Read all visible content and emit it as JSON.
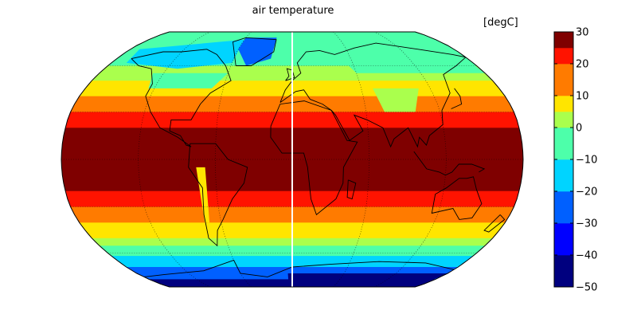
{
  "chart_data": {
    "type": "heatmap",
    "title": "air temperature",
    "units": "[degC]",
    "projection": "Robinson",
    "colorbar": {
      "orientation": "vertical",
      "position": "right",
      "min": -50,
      "max": 30,
      "ticks": [
        30,
        20,
        10,
        0,
        -10,
        -20,
        -30,
        -40,
        -50
      ],
      "tick_labels": [
        "30",
        "20",
        "10",
        "0",
        "−10",
        "−20",
        "−30",
        "−40",
        "−50"
      ],
      "bins": [
        {
          "from": -50,
          "to": -40,
          "color": "#00007f"
        },
        {
          "from": -40,
          "to": -30,
          "color": "#0000ff"
        },
        {
          "from": -30,
          "to": -20,
          "color": "#0060ff"
        },
        {
          "from": -20,
          "to": -10,
          "color": "#00d4ff"
        },
        {
          "from": -10,
          "to": 0,
          "color": "#4dffaa"
        },
        {
          "from": 0,
          "to": 5,
          "color": "#aaff4d"
        },
        {
          "from": 5,
          "to": 10,
          "color": "#ffe500"
        },
        {
          "from": 10,
          "to": 20,
          "color": "#ff7b00"
        },
        {
          "from": 20,
          "to": 25,
          "color": "#ff1300"
        },
        {
          "from": 25,
          "to": 30,
          "color": "#7f0000"
        }
      ]
    },
    "latitude_bands": [
      {
        "lat_min": 75,
        "lat_max": 90,
        "value": -5
      },
      {
        "lat_min": 60,
        "lat_max": 75,
        "value": -5
      },
      {
        "lat_min": 50,
        "lat_max": 60,
        "value": 2
      },
      {
        "lat_min": 40,
        "lat_max": 50,
        "value": 8
      },
      {
        "lat_min": 30,
        "lat_max": 40,
        "value": 15
      },
      {
        "lat_min": 20,
        "lat_max": 30,
        "value": 22
      },
      {
        "lat_min": -20,
        "lat_max": 20,
        "value": 27
      },
      {
        "lat_min": -30,
        "lat_max": -20,
        "value": 22
      },
      {
        "lat_min": -40,
        "lat_max": -30,
        "value": 15
      },
      {
        "lat_min": -50,
        "lat_max": -40,
        "value": 8
      },
      {
        "lat_min": -55,
        "lat_max": -50,
        "value": 2
      },
      {
        "lat_min": -62,
        "lat_max": -55,
        "value": -5
      },
      {
        "lat_min": -70,
        "lat_max": -62,
        "value": -15
      },
      {
        "lat_min": -80,
        "lat_max": -70,
        "value": -25
      },
      {
        "lat_min": -90,
        "lat_max": -80,
        "value": -45
      }
    ],
    "graticule": {
      "style": "dotted",
      "lat_step": 30,
      "lon_step": 60
    },
    "grid": true,
    "legend": "none"
  }
}
